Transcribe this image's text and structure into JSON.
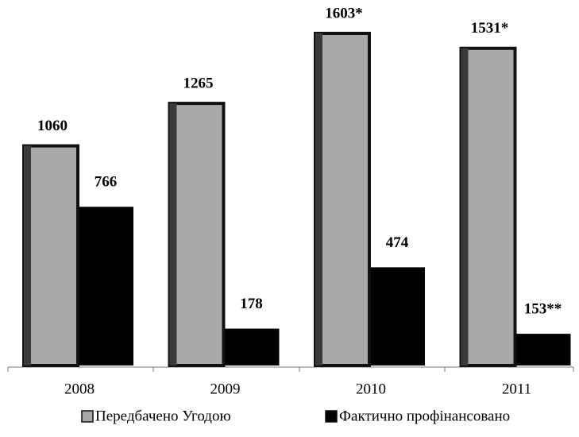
{
  "chart_data": {
    "type": "bar",
    "categories": [
      "2008",
      "2009",
      "2010",
      "2011"
    ],
    "series": [
      {
        "name": "Передбачено Угодою",
        "color": "#a9a9a9",
        "values": [
          1060,
          1265,
          1603,
          1531
        ],
        "value_labels": [
          "1060",
          "1265",
          "1603*",
          "1531*"
        ]
      },
      {
        "name": "Фактично профінансовано",
        "color": "#000000",
        "values": [
          766,
          178,
          474,
          153
        ],
        "value_labels": [
          "766",
          "178",
          "474",
          "153**"
        ]
      }
    ]
  }
}
